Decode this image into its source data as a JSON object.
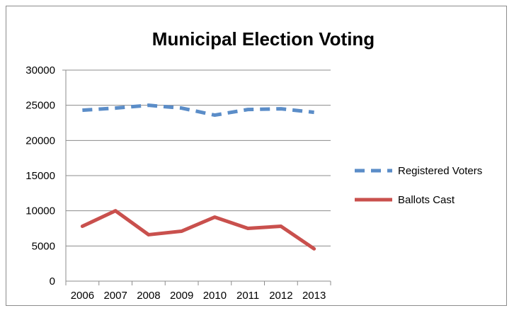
{
  "chart_data": {
    "type": "line",
    "title": "Municipal Election Voting",
    "categories": [
      "2006",
      "2007",
      "2008",
      "2009",
      "2010",
      "2011",
      "2012",
      "2013"
    ],
    "ylim": [
      0,
      30000
    ],
    "yticks": [
      0,
      5000,
      10000,
      15000,
      20000,
      25000,
      30000
    ],
    "grid": true,
    "legend_position": "right",
    "series": [
      {
        "name": "Registered Voters",
        "values": [
          24300,
          24600,
          25000,
          24600,
          23600,
          24400,
          24500,
          24000
        ],
        "color": "#5b8dc8",
        "style": "dashed"
      },
      {
        "name": "Ballots Cast",
        "values": [
          7800,
          10000,
          6600,
          7100,
          9100,
          7500,
          7800,
          4600
        ],
        "color": "#c9504d",
        "style": "solid"
      }
    ]
  }
}
